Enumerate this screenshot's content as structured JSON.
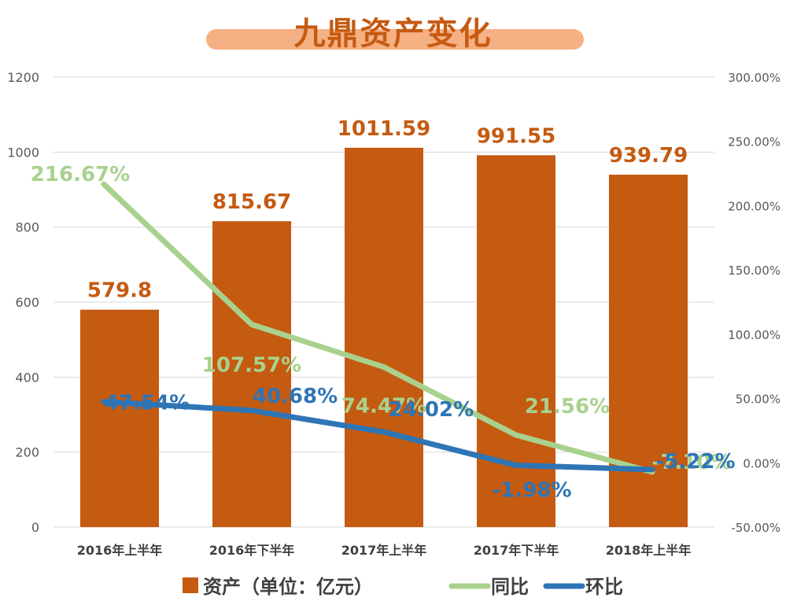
{
  "title": "九鼎资产变化",
  "colors": {
    "bar": "#c55a11",
    "yoy": "#a9d18e",
    "qoq": "#2e75b6",
    "title_bg": "#f5b083"
  },
  "chart_data": {
    "type": "bar",
    "title": "九鼎资产变化",
    "categories": [
      "2016年上半年",
      "2016年下半年",
      "2017年上半年",
      "2017年下半年",
      "2018年上半年"
    ],
    "y_left": {
      "ylim": [
        0,
        1200
      ],
      "ticks": [
        "0",
        "200",
        "400",
        "600",
        "800",
        "1000",
        "1200"
      ]
    },
    "y_right": {
      "ylim": [
        -50,
        300
      ],
      "ticks": [
        "-50.00%",
        "0.00%",
        "50.00%",
        "100.00%",
        "150.00%",
        "200.00%",
        "250.00%",
        "300.00%"
      ]
    },
    "grid": true,
    "legend_position": "bottom",
    "series": [
      {
        "name": "资产（单位：亿元）",
        "type": "bar",
        "axis": "left",
        "values": [
          579.8,
          815.67,
          1011.59,
          991.55,
          939.79
        ],
        "labels": [
          "579.8",
          "815.67",
          "1011.59",
          "991.55",
          "939.79"
        ]
      },
      {
        "name": "同比",
        "type": "line",
        "axis": "right",
        "values": [
          216.67,
          107.57,
          74.47,
          21.56,
          -7.1
        ],
        "labels": [
          "216.67%",
          "107.57%",
          "74.47%",
          "21.56%",
          "-7.10%"
        ]
      },
      {
        "name": "环比",
        "type": "line",
        "axis": "right",
        "values": [
          47.54,
          40.68,
          24.02,
          -1.98,
          -5.22
        ],
        "labels": [
          "47.54%",
          "40.68%",
          "24.02%",
          "-1.98%",
          "-5.22%"
        ]
      }
    ]
  },
  "legend": [
    {
      "label": "资产（单位：亿元）",
      "kind": "bar"
    },
    {
      "label": "同比",
      "kind": "line"
    },
    {
      "label": "环比",
      "kind": "line"
    }
  ]
}
